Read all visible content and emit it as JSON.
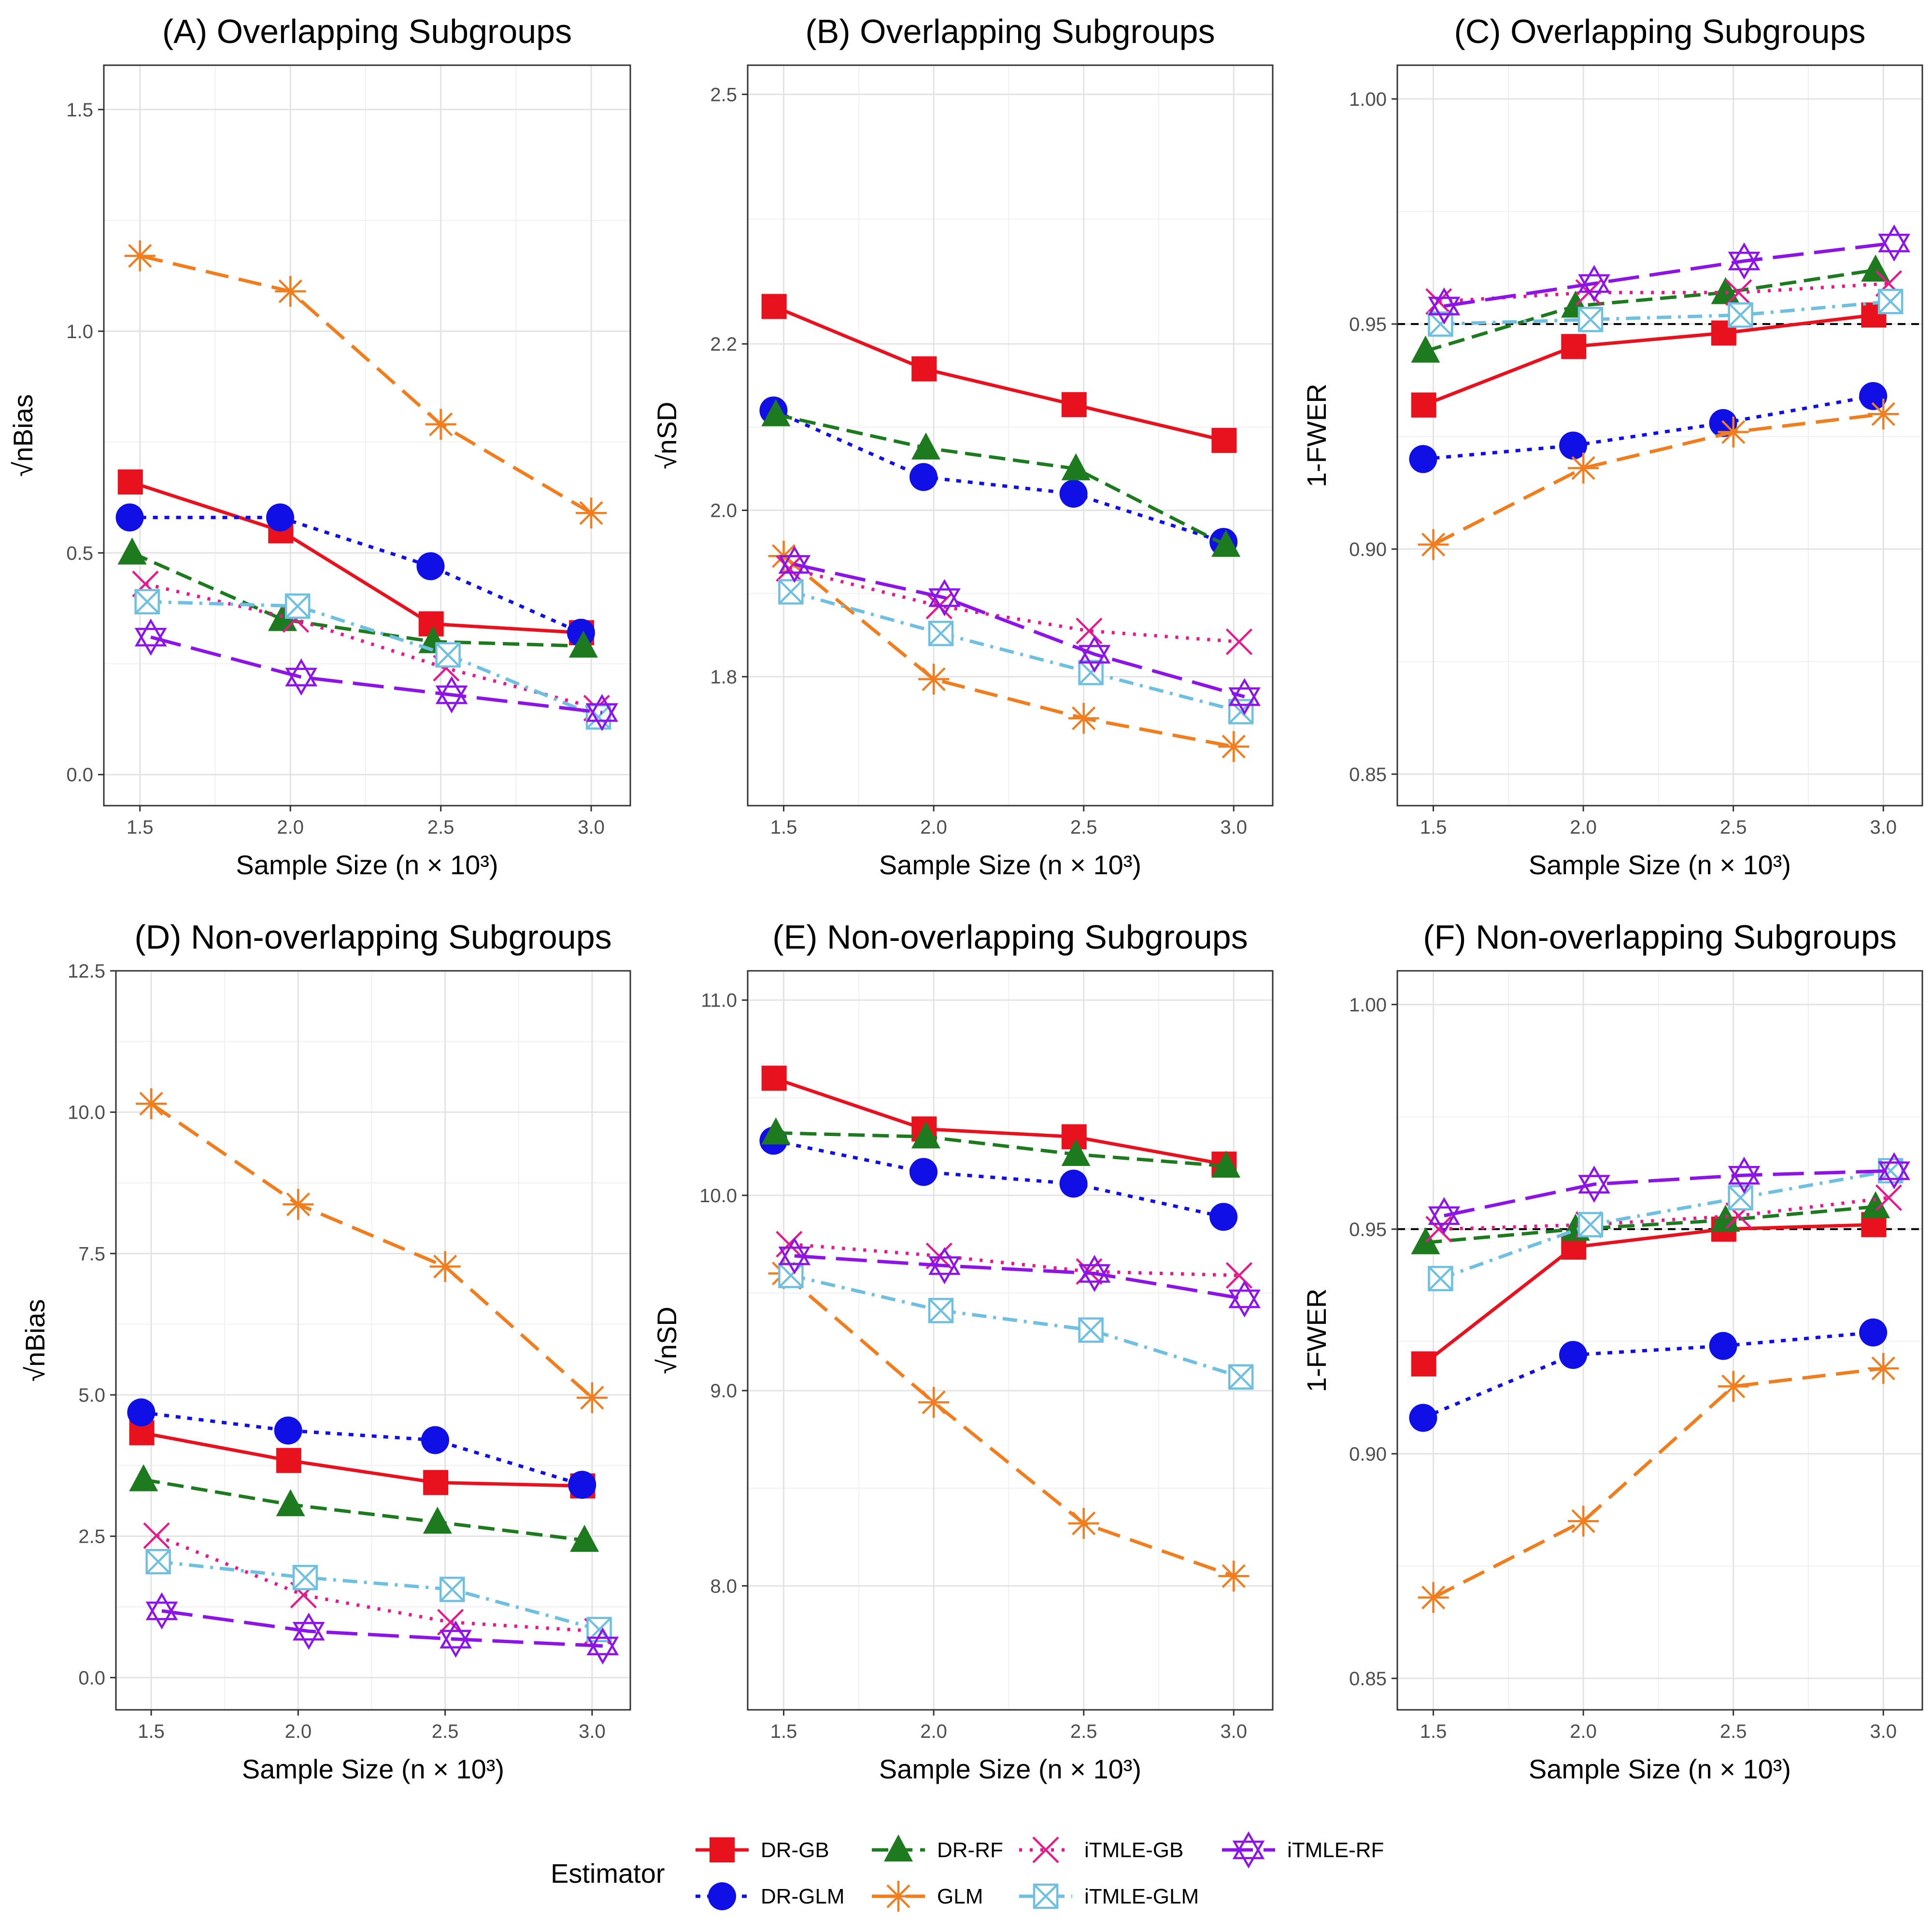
{
  "colors": {
    "DR-GB": "#e8121f",
    "DR-GLM": "#1010e6",
    "DR-RF": "#1e7a1e",
    "GLM": "#f07d1e",
    "iTMLE-GB": "#e6198c",
    "iTMLE-GLM": "#6fc0e0",
    "iTMLE-RF": "#8c14e6"
  },
  "legend": {
    "title": "Estimator",
    "entries": [
      "DR-GB",
      "DR-GLM",
      "DR-RF",
      "GLM",
      "iTMLE-GB",
      "iTMLE-GLM",
      "iTMLE-RF"
    ]
  },
  "chart_data": [
    {
      "id": "A",
      "type": "line",
      "title": "(A) Overlapping Subgroups",
      "xlabel": "Sample Size (n × 10³)",
      "ylabel": "√nBias",
      "x": [
        1.5,
        2.0,
        2.5,
        3.0
      ],
      "xlim": [
        1.38,
        3.13
      ],
      "ylim": [
        -0.07,
        1.6
      ],
      "xticks": [
        "1.5",
        "2.0",
        "2.5",
        "3.0"
      ],
      "yticks": [
        "0.0",
        "0.5",
        "1.0",
        "1.5"
      ],
      "ytick_values": [
        0.0,
        0.5,
        1.0,
        1.5
      ],
      "reference_line": null,
      "series": [
        {
          "name": "DR-GB",
          "values": [
            0.66,
            0.55,
            0.34,
            0.32
          ]
        },
        {
          "name": "DR-GLM",
          "values": [
            0.58,
            0.58,
            0.47,
            0.32
          ]
        },
        {
          "name": "DR-RF",
          "values": [
            0.5,
            0.35,
            0.3,
            0.29
          ]
        },
        {
          "name": "GLM",
          "values": [
            1.17,
            1.09,
            0.79,
            0.59
          ]
        },
        {
          "name": "iTMLE-GB",
          "values": [
            0.43,
            0.35,
            0.24,
            0.15
          ]
        },
        {
          "name": "iTMLE-GLM",
          "values": [
            0.39,
            0.38,
            0.27,
            0.13
          ]
        },
        {
          "name": "iTMLE-RF",
          "values": [
            0.31,
            0.22,
            0.18,
            0.14
          ]
        }
      ]
    },
    {
      "id": "B",
      "type": "line",
      "title": "(B) Overlapping Subgroups",
      "xlabel": "Sample Size (n × 10³)",
      "ylabel": "√nSD",
      "x": [
        1.5,
        2.0,
        2.5,
        3.0
      ],
      "xlim": [
        1.38,
        3.13
      ],
      "ylim": [
        1.645,
        2.535
      ],
      "xticks": [
        "1.5",
        "2.0",
        "2.5",
        "3.0"
      ],
      "yticks": [
        "1.8",
        "2.0",
        "2.2",
        "2.5"
      ],
      "ytick_values": [
        1.8,
        2.0,
        2.2,
        2.5
      ],
      "reference_line": null,
      "series": [
        {
          "name": "DR-GB",
          "values": [
            2.245,
            2.17,
            2.127,
            2.084
          ]
        },
        {
          "name": "DR-GLM",
          "values": [
            2.12,
            2.04,
            2.02,
            1.962
          ]
        },
        {
          "name": "DR-RF",
          "values": [
            2.115,
            2.075,
            2.05,
            1.958
          ]
        },
        {
          "name": "GLM",
          "values": [
            1.945,
            1.797,
            1.75,
            1.716
          ]
        },
        {
          "name": "iTMLE-GB",
          "values": [
            1.93,
            1.885,
            1.855,
            1.842
          ]
        },
        {
          "name": "iTMLE-GLM",
          "values": [
            1.902,
            1.852,
            1.805,
            1.758
          ]
        },
        {
          "name": "iTMLE-RF",
          "values": [
            1.935,
            1.895,
            1.827,
            1.776
          ]
        }
      ]
    },
    {
      "id": "C",
      "type": "line",
      "title": "(C) Overlapping Subgroups",
      "xlabel": "Sample Size (n × 10³)",
      "ylabel": "1-FWER",
      "x": [
        1.5,
        2.0,
        2.5,
        3.0
      ],
      "xlim": [
        1.38,
        3.13
      ],
      "ylim": [
        0.843,
        1.0075
      ],
      "xticks": [
        "1.5",
        "2.0",
        "2.5",
        "3.0"
      ],
      "yticks": [
        "0.85",
        "0.90",
        "0.95",
        "1.00"
      ],
      "ytick_values": [
        0.85,
        0.9,
        0.95,
        1.0
      ],
      "reference_line": 0.95,
      "series": [
        {
          "name": "DR-GB",
          "values": [
            0.932,
            0.945,
            0.948,
            0.952
          ]
        },
        {
          "name": "DR-GLM",
          "values": [
            0.92,
            0.923,
            0.928,
            0.934
          ]
        },
        {
          "name": "DR-RF",
          "values": [
            0.944,
            0.954,
            0.957,
            0.962
          ]
        },
        {
          "name": "GLM",
          "values": [
            0.901,
            0.918,
            0.926,
            0.93
          ]
        },
        {
          "name": "iTMLE-GB",
          "values": [
            0.955,
            0.957,
            0.957,
            0.959
          ]
        },
        {
          "name": "iTMLE-GLM",
          "values": [
            0.95,
            0.951,
            0.952,
            0.955
          ]
        },
        {
          "name": "iTMLE-RF",
          "values": [
            0.954,
            0.959,
            0.964,
            0.968
          ]
        }
      ]
    },
    {
      "id": "D",
      "type": "line",
      "title": "(D) Non-overlapping Subgroups",
      "xlabel": "Sample Size (n × 10³)",
      "ylabel": "√nBias",
      "x": [
        1.5,
        2.0,
        2.5,
        3.0
      ],
      "xlim": [
        1.38,
        3.13
      ],
      "ylim": [
        -0.57,
        12.5
      ],
      "xticks": [
        "1.5",
        "2.0",
        "2.5",
        "3.0"
      ],
      "yticks": [
        "0.0",
        "2.5",
        "5.0",
        "7.5",
        "10.0",
        "12.5"
      ],
      "ytick_values": [
        0.0,
        2.5,
        5.0,
        7.5,
        10.0,
        12.5
      ],
      "reference_line": null,
      "series": [
        {
          "name": "DR-GB",
          "values": [
            4.33,
            3.84,
            3.45,
            3.39
          ]
        },
        {
          "name": "DR-GLM",
          "values": [
            4.69,
            4.37,
            4.2,
            3.41
          ]
        },
        {
          "name": "DR-RF",
          "values": [
            3.5,
            3.06,
            2.75,
            2.43
          ]
        },
        {
          "name": "GLM",
          "values": [
            10.15,
            8.37,
            7.27,
            4.95
          ]
        },
        {
          "name": "iTMLE-GB",
          "values": [
            2.51,
            1.46,
            0.98,
            0.82
          ]
        },
        {
          "name": "iTMLE-GLM",
          "values": [
            2.05,
            1.77,
            1.56,
            0.85
          ]
        },
        {
          "name": "iTMLE-RF",
          "values": [
            1.18,
            0.82,
            0.68,
            0.56
          ]
        }
      ]
    },
    {
      "id": "E",
      "type": "line",
      "title": "(E) Non-overlapping Subgroups",
      "xlabel": "Sample Size (n × 10³)",
      "ylabel": "√nSD",
      "x": [
        1.5,
        2.0,
        2.5,
        3.0
      ],
      "xlim": [
        1.38,
        3.13
      ],
      "ylim": [
        7.365,
        11.15
      ],
      "xticks": [
        "1.5",
        "2.0",
        "2.5",
        "3.0"
      ],
      "yticks": [
        "8.0",
        "9.0",
        "10.0",
        "11.0"
      ],
      "ytick_values": [
        8.0,
        9.0,
        10.0,
        11.0
      ],
      "reference_line": null,
      "series": [
        {
          "name": "DR-GB",
          "values": [
            10.6,
            10.34,
            10.3,
            10.16
          ]
        },
        {
          "name": "DR-GLM",
          "values": [
            10.28,
            10.12,
            10.06,
            9.89
          ]
        },
        {
          "name": "DR-RF",
          "values": [
            10.32,
            10.3,
            10.21,
            10.15
          ]
        },
        {
          "name": "GLM",
          "values": [
            9.6,
            8.94,
            8.32,
            8.05
          ]
        },
        {
          "name": "iTMLE-GB",
          "values": [
            9.75,
            9.69,
            9.61,
            9.59
          ]
        },
        {
          "name": "iTMLE-GLM",
          "values": [
            9.59,
            9.41,
            9.31,
            9.07
          ]
        },
        {
          "name": "iTMLE-RF",
          "values": [
            9.69,
            9.64,
            9.6,
            9.47
          ]
        }
      ]
    },
    {
      "id": "F",
      "type": "line",
      "title": "(F) Non-overlapping Subgroups",
      "xlabel": "Sample Size (n × 10³)",
      "ylabel": "1-FWER",
      "x": [
        1.5,
        2.0,
        2.5,
        3.0
      ],
      "xlim": [
        1.38,
        3.13
      ],
      "ylim": [
        0.843,
        1.0075
      ],
      "xticks": [
        "1.5",
        "2.0",
        "2.5",
        "3.0"
      ],
      "yticks": [
        "0.85",
        "0.90",
        "0.95",
        "1.00"
      ],
      "ytick_values": [
        0.85,
        0.9,
        0.95,
        1.0
      ],
      "reference_line": 0.95,
      "series": [
        {
          "name": "DR-GB",
          "values": [
            0.92,
            0.946,
            0.95,
            0.951
          ]
        },
        {
          "name": "DR-GLM",
          "values": [
            0.908,
            0.922,
            0.924,
            0.927
          ]
        },
        {
          "name": "DR-RF",
          "values": [
            0.947,
            0.95,
            0.952,
            0.955
          ]
        },
        {
          "name": "GLM",
          "values": [
            0.868,
            0.885,
            0.915,
            0.919
          ]
        },
        {
          "name": "iTMLE-GB",
          "values": [
            0.95,
            0.951,
            0.953,
            0.957
          ]
        },
        {
          "name": "iTMLE-GLM",
          "values": [
            0.939,
            0.951,
            0.957,
            0.963
          ]
        },
        {
          "name": "iTMLE-RF",
          "values": [
            0.953,
            0.96,
            0.962,
            0.963
          ]
        }
      ]
    }
  ]
}
